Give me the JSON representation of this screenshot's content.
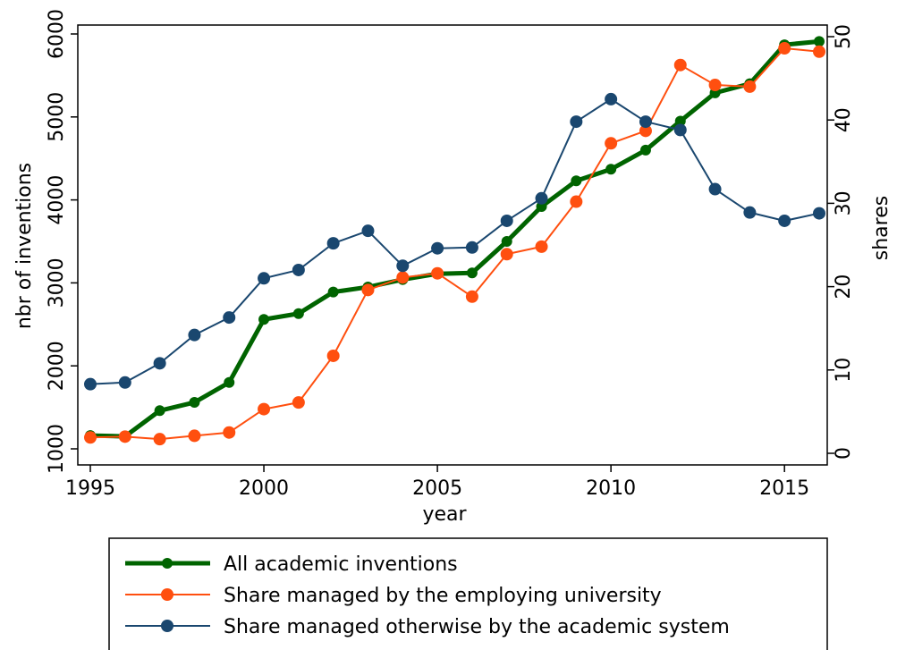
{
  "chart_data": {
    "type": "line",
    "x_label": "year",
    "y_label": "nbr of inventions",
    "y2_label": "shares",
    "x": [
      1995,
      1996,
      1997,
      1998,
      1999,
      2000,
      2001,
      2002,
      2003,
      2004,
      2005,
      2006,
      2007,
      2008,
      2009,
      2010,
      2011,
      2012,
      2013,
      2014,
      2015,
      2016
    ],
    "xlim": [
      1995,
      2016
    ],
    "xticks": [
      1995,
      2000,
      2005,
      2010,
      2015
    ],
    "ylim": [
      1000,
      6000
    ],
    "yticks": [
      1000,
      2000,
      3000,
      4000,
      5000,
      6000
    ],
    "y2lim": [
      0,
      50
    ],
    "y2ticks": [
      0,
      10,
      20,
      30,
      40,
      50
    ],
    "legend": "bottom",
    "series": [
      {
        "name": "All academic inventions",
        "color": "#006400",
        "values": [
          1160,
          1150,
          1460,
          1560,
          1800,
          2560,
          2630,
          2890,
          2950,
          3040,
          3110,
          3120,
          3500,
          3920,
          4230,
          4370,
          4600,
          4950,
          5290,
          5400,
          5870,
          5910
        ]
      },
      {
        "name": "Share managed by the employing university",
        "color": "#ff4f0f",
        "axis": "y2",
        "values": [
          1.9,
          2.0,
          1.7,
          2.1,
          2.5,
          5.3,
          6.1,
          11.7,
          19.6,
          21.1,
          21.6,
          18.8,
          23.9,
          24.8,
          30.2,
          37.2,
          38.7,
          46.6,
          44.2,
          44.0,
          48.6,
          48.2
        ]
      },
      {
        "name": "Share managed otherwise by the academic system",
        "color": "#1a476f",
        "axis": "y2",
        "values": [
          8.3,
          8.5,
          10.8,
          14.2,
          16.3,
          21.0,
          22.0,
          25.2,
          26.7,
          22.5,
          24.6,
          24.7,
          27.9,
          30.6,
          39.8,
          42.5,
          39.8,
          38.8,
          31.7,
          28.9,
          27.9,
          28.8
        ]
      }
    ]
  }
}
